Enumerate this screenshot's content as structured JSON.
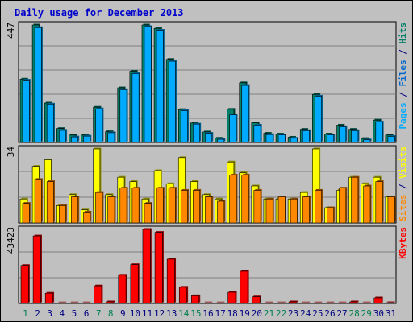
{
  "title": "Daily usage for December 2013",
  "colors": {
    "frame": "#c0c0c0",
    "plot_bg": "#c0c0c0",
    "grid": "#808080",
    "title": "#0000cc",
    "pages": "#00aaff",
    "files": "#0066cc",
    "hits": "#00806a",
    "sites": "#ff8800",
    "visits": "#ffff00",
    "kbytes": "#ff0000",
    "weekend_label": "#00804d",
    "weekday_label": "#000080"
  },
  "chart_data": [
    {
      "type": "bar",
      "name": "hits-files-pages",
      "ymax_label": "447",
      "ylim": [
        0,
        447
      ],
      "right_label": [
        {
          "text": "Pages",
          "color": "#00aaff"
        },
        {
          "text": " / ",
          "color": "#000080"
        },
        {
          "text": "Files",
          "color": "#0066cc"
        },
        {
          "text": " / ",
          "color": "#000080"
        },
        {
          "text": "Hits",
          "color": "#00806a"
        }
      ],
      "categories": [
        "1",
        "2",
        "3",
        "4",
        "5",
        "6",
        "7",
        "8",
        "9",
        "10",
        "11",
        "12",
        "13",
        "14",
        "15",
        "16",
        "17",
        "18",
        "19",
        "20",
        "21",
        "22",
        "23",
        "24",
        "25",
        "26",
        "27",
        "28",
        "29",
        "30",
        "31"
      ],
      "series": [
        {
          "name": "Hits",
          "values": [
            241,
            447,
            150,
            53,
            28,
            28,
            134,
            41,
            208,
            271,
            447,
            434,
            316,
            125,
            74,
            40,
            16,
            126,
            227,
            75,
            35,
            32,
            20,
            50,
            183,
            32,
            66,
            50,
            15,
            85,
            28
          ]
        },
        {
          "name": "Files",
          "values": [
            237,
            437,
            146,
            46,
            21,
            24,
            128,
            37,
            201,
            262,
            441,
            427,
            309,
            121,
            70,
            35,
            12,
            105,
            217,
            66,
            30,
            29,
            16,
            45,
            176,
            29,
            60,
            45,
            10,
            78,
            23
          ]
        }
      ]
    },
    {
      "type": "bar",
      "name": "visits-sites",
      "ymax_label": "34",
      "ylim": [
        0,
        34
      ],
      "right_label": [
        {
          "text": "Sites",
          "color": "#ff8800"
        },
        {
          "text": " / ",
          "color": "#000080"
        },
        {
          "text": "Visits",
          "color": "#ffff00"
        }
      ],
      "categories": [
        "1",
        "2",
        "3",
        "4",
        "5",
        "6",
        "7",
        "8",
        "9",
        "10",
        "11",
        "12",
        "13",
        "14",
        "15",
        "16",
        "17",
        "18",
        "19",
        "20",
        "21",
        "22",
        "23",
        "24",
        "25",
        "26",
        "27",
        "28",
        "29",
        "30",
        "31"
      ],
      "series": [
        {
          "name": "Visits",
          "values": [
            11,
            26,
            29,
            8,
            13,
            6,
            34,
            13,
            21,
            19,
            11,
            24,
            18,
            30,
            19,
            13,
            11,
            28,
            23,
            17,
            11,
            11,
            11,
            14,
            34,
            7,
            15,
            21,
            18,
            21,
            12
          ]
        },
        {
          "name": "Sites",
          "values": [
            9,
            20,
            19,
            8,
            12,
            5,
            14,
            12,
            16,
            16,
            9,
            16,
            16,
            15,
            15,
            12,
            10,
            22,
            22,
            15,
            11,
            12,
            11,
            12,
            15,
            7,
            16,
            21,
            17,
            19,
            12
          ]
        }
      ]
    },
    {
      "type": "bar",
      "name": "kbytes",
      "ymax_label": "43423",
      "ylim": [
        0,
        43423
      ],
      "right_label": [
        {
          "text": "KBytes",
          "color": "#ff0000"
        }
      ],
      "categories": [
        "1",
        "2",
        "3",
        "4",
        "5",
        "6",
        "7",
        "8",
        "9",
        "10",
        "11",
        "12",
        "13",
        "14",
        "15",
        "16",
        "17",
        "18",
        "19",
        "20",
        "21",
        "22",
        "23",
        "24",
        "25",
        "26",
        "27",
        "28",
        "29",
        "30",
        "31"
      ],
      "series": [
        {
          "name": "KBytes",
          "values": [
            22300,
            39600,
            6050,
            0,
            0,
            0,
            10300,
            950,
            16600,
            22800,
            43423,
            41700,
            26000,
            9500,
            4550,
            0,
            0,
            6600,
            18900,
            3900,
            0,
            0,
            950,
            0,
            0,
            0,
            0,
            950,
            0,
            3300,
            450
          ]
        }
      ]
    }
  ],
  "x_labels": [
    "1",
    "2",
    "3",
    "4",
    "5",
    "6",
    "7",
    "8",
    "9",
    "10",
    "11",
    "12",
    "13",
    "14",
    "15",
    "16",
    "17",
    "18",
    "19",
    "20",
    "21",
    "22",
    "23",
    "24",
    "25",
    "26",
    "27",
    "28",
    "29",
    "30",
    "31"
  ],
  "weekend_days": [
    1,
    7,
    8,
    14,
    15,
    21,
    22,
    28,
    29
  ]
}
